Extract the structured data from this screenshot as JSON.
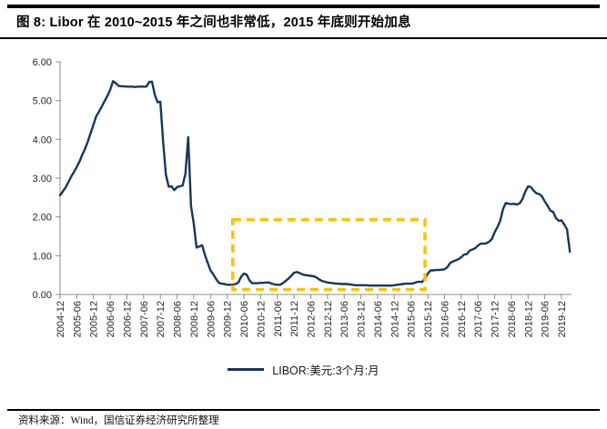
{
  "header": {
    "title": "图 8:  Libor 在 2010~2015 年之间也非常低，2015 年底则开始加息"
  },
  "chart_data": {
    "type": "line",
    "title": "图 8: Libor 在 2010~2015 年之间也非常低，2015 年底则开始加息",
    "legend": "LIBOR:美元:3个月:月",
    "legend_position": "bottom",
    "grid": false,
    "x_start": "2004-12",
    "x_freq": "monthly",
    "ylim": [
      0,
      6
    ],
    "ytick_labels": [
      "0.00",
      "1.00",
      "2.00",
      "3.00",
      "4.00",
      "5.00",
      "6.00"
    ],
    "x_tick_labels": [
      "2004-12",
      "2005-06",
      "2005-12",
      "2006-06",
      "2006-12",
      "2007-06",
      "2007-12",
      "2008-06",
      "2008-12",
      "2009-06",
      "2009-12",
      "2010-06",
      "2010-12",
      "2011-06",
      "2011-12",
      "2012-06",
      "2012-12",
      "2013-06",
      "2013-12",
      "2014-06",
      "2014-12",
      "2015-06",
      "2015-12",
      "2016-06",
      "2016-12",
      "2017-06",
      "2017-12",
      "2018-06",
      "2018-12",
      "2019-06",
      "2019-12"
    ],
    "line_color": "#17365D",
    "axis_color": "#8C8C8C",
    "tick_label_color": "#262626",
    "annotation_box": {
      "x_start": "2010-02",
      "x_end": "2015-11",
      "y_bottom": 0.13,
      "y_top": 1.93,
      "color": "#FFC000",
      "style": "dashed"
    },
    "series": [
      {
        "name": "LIBOR:美元:3个月:月",
        "values": [
          2.56,
          2.66,
          2.76,
          2.9,
          3.04,
          3.16,
          3.29,
          3.43,
          3.61,
          3.76,
          3.95,
          4.17,
          4.38,
          4.6,
          4.72,
          4.85,
          4.99,
          5.12,
          5.28,
          5.5,
          5.45,
          5.38,
          5.37,
          5.37,
          5.36,
          5.36,
          5.36,
          5.35,
          5.36,
          5.36,
          5.36,
          5.36,
          5.48,
          5.49,
          5.15,
          4.96,
          4.97,
          3.92,
          3.09,
          2.78,
          2.79,
          2.69,
          2.77,
          2.79,
          2.81,
          3.12,
          4.06,
          2.28,
          1.83,
          1.21,
          1.24,
          1.27,
          1.02,
          0.82,
          0.62,
          0.52,
          0.4,
          0.3,
          0.28,
          0.27,
          0.25,
          0.25,
          0.25,
          0.27,
          0.31,
          0.46,
          0.54,
          0.51,
          0.36,
          0.29,
          0.29,
          0.29,
          0.3,
          0.3,
          0.31,
          0.31,
          0.28,
          0.26,
          0.25,
          0.25,
          0.29,
          0.35,
          0.41,
          0.48,
          0.56,
          0.58,
          0.55,
          0.52,
          0.5,
          0.49,
          0.48,
          0.47,
          0.44,
          0.39,
          0.35,
          0.33,
          0.31,
          0.3,
          0.29,
          0.28,
          0.28,
          0.27,
          0.27,
          0.27,
          0.26,
          0.25,
          0.24,
          0.24,
          0.24,
          0.24,
          0.24,
          0.23,
          0.23,
          0.23,
          0.23,
          0.23,
          0.23,
          0.23,
          0.23,
          0.23,
          0.24,
          0.25,
          0.26,
          0.27,
          0.28,
          0.28,
          0.28,
          0.29,
          0.32,
          0.33,
          0.32,
          0.41,
          0.54,
          0.62,
          0.62,
          0.63,
          0.63,
          0.64,
          0.65,
          0.7,
          0.81,
          0.85,
          0.88,
          0.91,
          0.96,
          1.03,
          1.04,
          1.13,
          1.16,
          1.19,
          1.26,
          1.31,
          1.31,
          1.32,
          1.36,
          1.43,
          1.6,
          1.74,
          1.9,
          2.2,
          2.36,
          2.34,
          2.33,
          2.34,
          2.32,
          2.35,
          2.46,
          2.65,
          2.79,
          2.77,
          2.68,
          2.61,
          2.59,
          2.53,
          2.4,
          2.29,
          2.16,
          2.13,
          1.97,
          1.9,
          1.91,
          1.8,
          1.68,
          1.1
        ]
      }
    ]
  },
  "footer": {
    "source": "资料来源：Wind，国信证券经济研究所整理"
  }
}
